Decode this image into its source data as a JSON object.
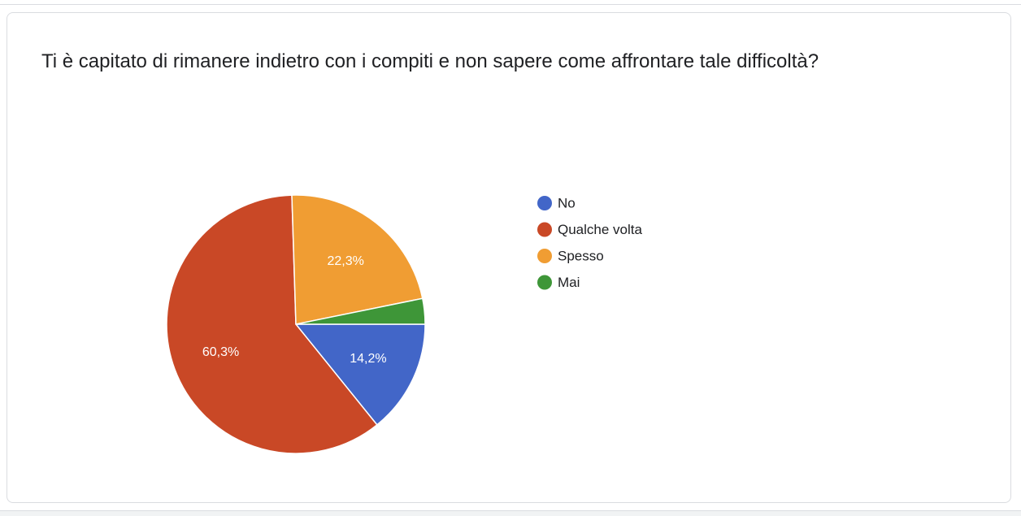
{
  "question": {
    "title": "Ti è capitato di rimanere indietro con i compiti e non sapere come affrontare tale difficoltà?"
  },
  "chart_data": {
    "type": "pie",
    "title": "",
    "legend_position": "right",
    "slices": [
      {
        "label": "No",
        "value": 14.2,
        "value_label": "14,2%",
        "color": "#4266c8"
      },
      {
        "label": "Qualche volta",
        "value": 60.3,
        "value_label": "60,3%",
        "color": "#c94826"
      },
      {
        "label": "Spesso",
        "value": 22.3,
        "value_label": "22,3%",
        "color": "#f09d33"
      },
      {
        "label": "Mai",
        "value": 3.2,
        "value_label": "",
        "color": "#3e9638"
      }
    ]
  }
}
